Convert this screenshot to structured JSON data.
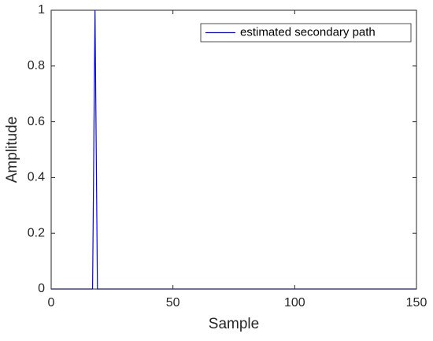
{
  "chart_data": {
    "type": "line",
    "x_label": "Sample",
    "y_label": "Amplitude",
    "x": [
      0,
      17,
      18,
      19,
      150
    ],
    "series": [
      {
        "name": "estimated secondary path",
        "color": "#0000ff",
        "values": [
          0,
          0,
          1,
          0,
          0
        ]
      }
    ],
    "xlim": [
      0,
      150
    ],
    "xticks": [
      0,
      50,
      100,
      150
    ],
    "ylim": [
      0,
      1
    ],
    "yticks": [
      0,
      0.2,
      0.4,
      0.6,
      0.8,
      1
    ],
    "grid": false,
    "legend": "top-right"
  }
}
